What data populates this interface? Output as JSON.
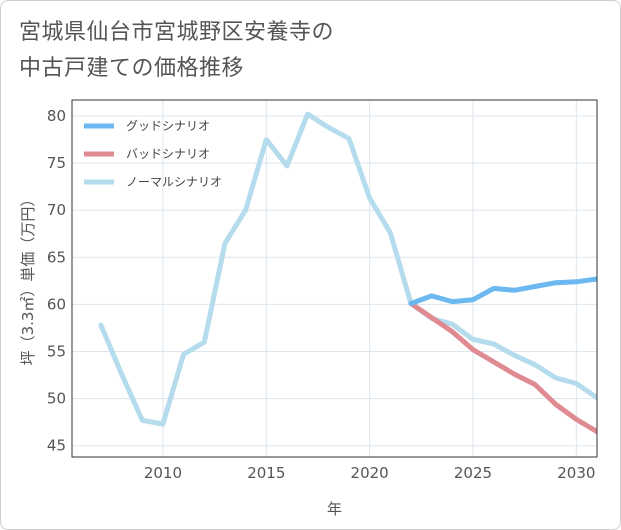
{
  "title_lines": [
    "宮城県仙台市宮城野区安養寺の",
    "中古戸建ての価格推移"
  ],
  "chart_data": {
    "type": "line",
    "title": "宮城県仙台市宮城野区安養寺の中古戸建ての価格推移",
    "xlabel": "年",
    "ylabel": "坪（3.3㎡）単価（万円）",
    "xlim": [
      2005.6,
      2031
    ],
    "ylim": [
      43.8,
      81.7
    ],
    "xticks": [
      2010,
      2015,
      2020,
      2025,
      2030
    ],
    "yticks": [
      45,
      50,
      55,
      60,
      65,
      70,
      75,
      80
    ],
    "grid": true,
    "legend_position": "top-left",
    "series": [
      {
        "name": "グッドシナリオ",
        "color": "#6cb8f0",
        "x": [
          2022,
          2023,
          2024,
          2025,
          2026,
          2027,
          2028,
          2029,
          2030,
          2031
        ],
        "y": [
          60.1,
          60.9,
          60.3,
          60.5,
          61.7,
          61.5,
          61.9,
          62.3,
          62.4,
          62.7
        ]
      },
      {
        "name": "バッドシナリオ",
        "color": "#e08a92",
        "x": [
          2022,
          2023,
          2024,
          2025,
          2026,
          2027,
          2028,
          2029,
          2030,
          2031
        ],
        "y": [
          60.1,
          58.6,
          57.1,
          55.2,
          53.9,
          52.6,
          51.5,
          49.4,
          47.8,
          46.5
        ]
      },
      {
        "name": "ノーマルシナリオ",
        "color": "#b5dcec",
        "x": [
          2007,
          2008,
          2009,
          2010,
          2011,
          2012,
          2013,
          2014,
          2015,
          2016,
          2017,
          2018,
          2019,
          2020,
          2021,
          2022,
          2023,
          2024,
          2025,
          2026,
          2027,
          2028,
          2029,
          2030,
          2031
        ],
        "y": [
          57.8,
          52.6,
          47.7,
          47.3,
          54.7,
          56.0,
          66.5,
          70.0,
          77.5,
          74.7,
          80.2,
          78.8,
          77.6,
          71.3,
          67.6,
          60.1,
          58.5,
          57.9,
          56.3,
          55.8,
          54.6,
          53.6,
          52.2,
          51.6,
          50.1
        ]
      }
    ]
  }
}
